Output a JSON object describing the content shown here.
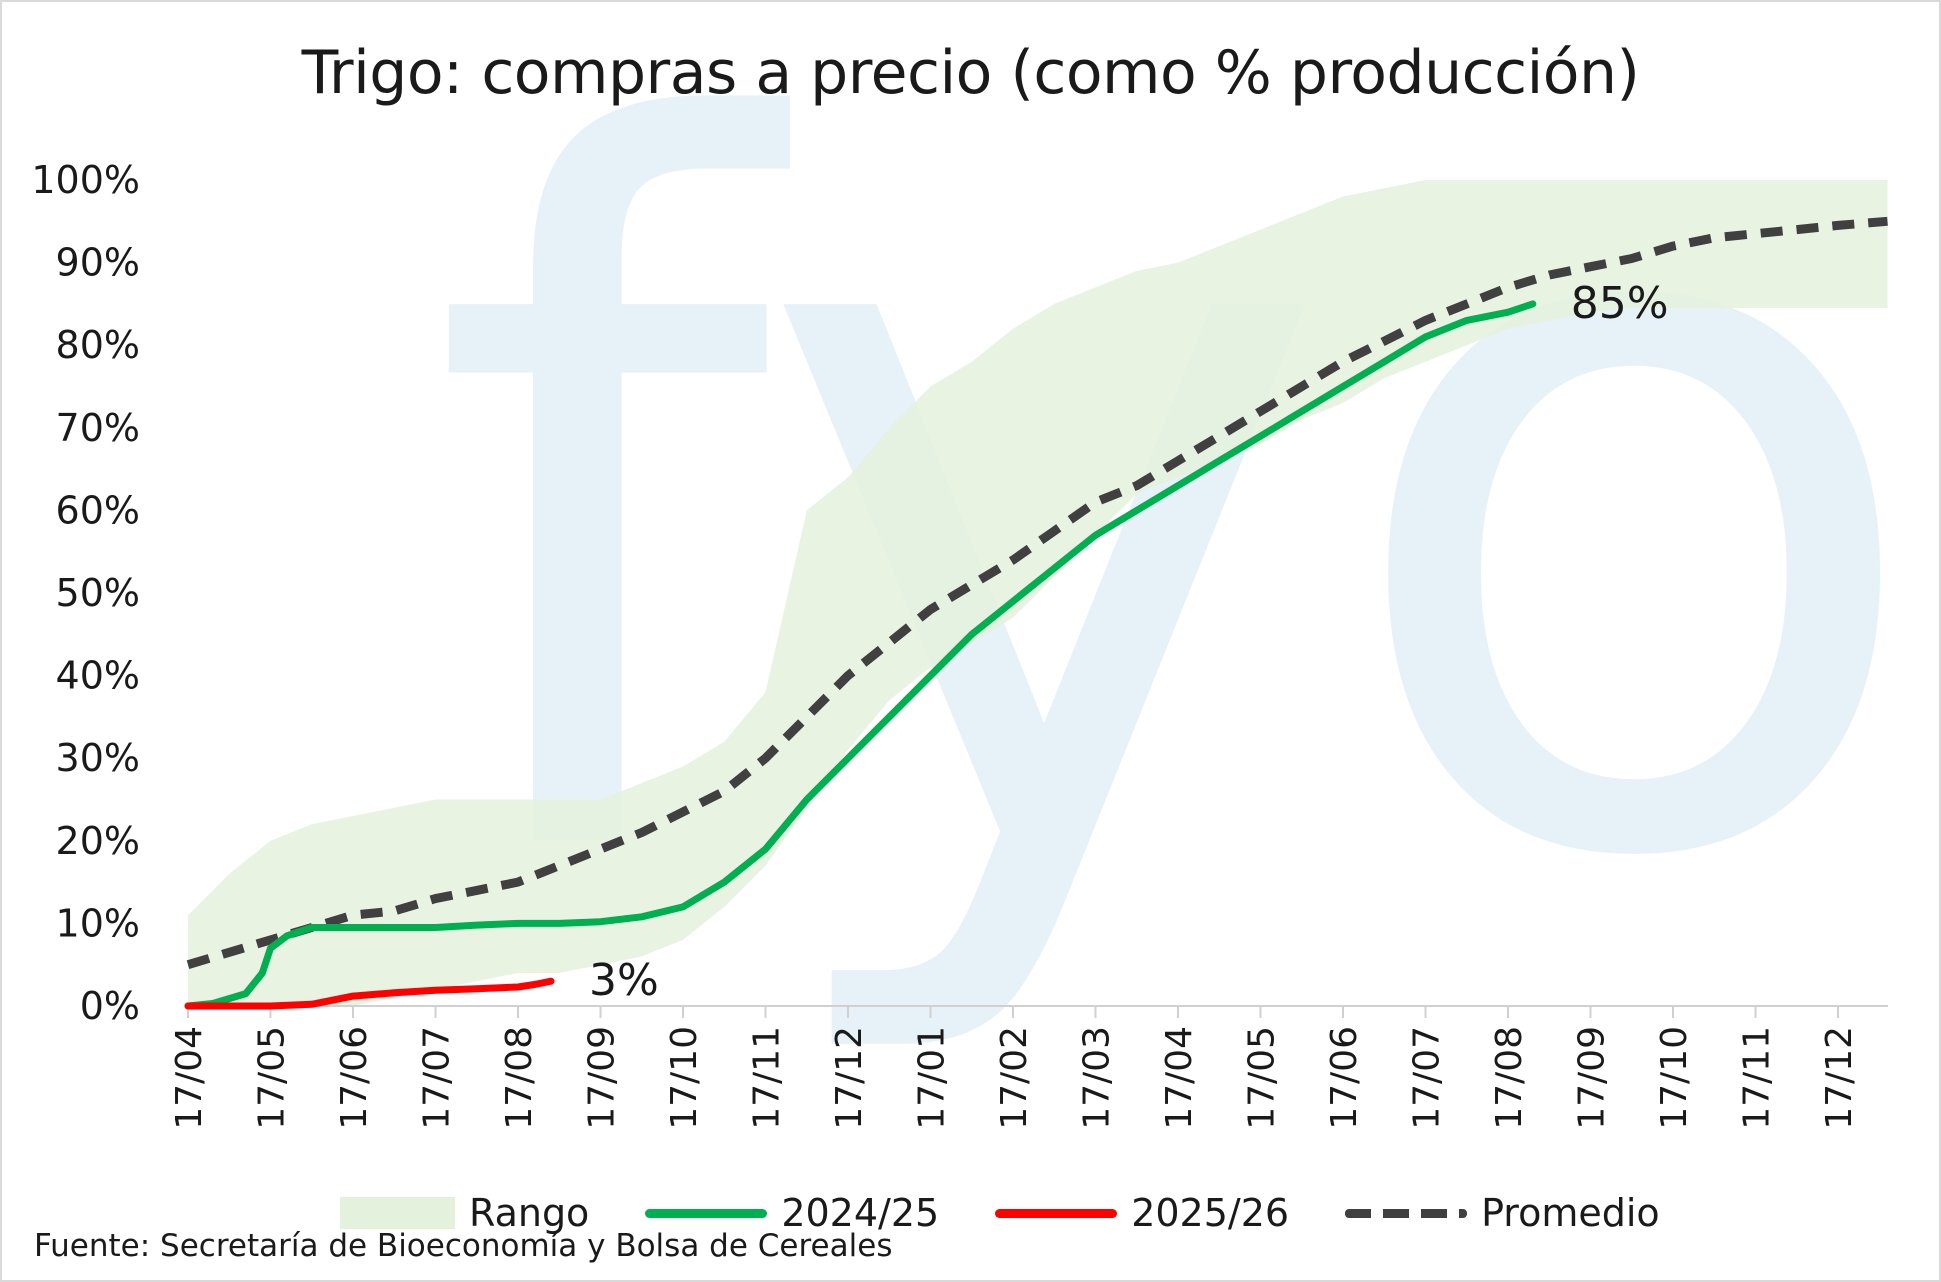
{
  "chart_data": {
    "type": "line",
    "title": "Trigo: compras a precio (como % producción)",
    "xlabel": "",
    "ylabel": "",
    "ylim": [
      0,
      100
    ],
    "y_ticks": [
      "0%",
      "10%",
      "20%",
      "30%",
      "40%",
      "50%",
      "60%",
      "70%",
      "80%",
      "90%",
      "100%"
    ],
    "x_ticks": [
      "17/04",
      "17/05",
      "17/06",
      "17/07",
      "17/08",
      "17/09",
      "17/10",
      "17/11",
      "17/12",
      "17/01",
      "17/02",
      "17/03",
      "17/04",
      "17/05",
      "17/06",
      "17/07",
      "17/08",
      "17/09",
      "17/10",
      "17/11",
      "17/12"
    ],
    "x_range": [
      0,
      20.6
    ],
    "grid": false,
    "legend_position": "bottom",
    "watermark": "fyo",
    "series": [
      {
        "name": "Rango",
        "kind": "band",
        "color": "#e4f1dd",
        "x": [
          0,
          0.5,
          1,
          1.5,
          2,
          2.5,
          3,
          3.5,
          4,
          4.5,
          5,
          5.5,
          6,
          6.5,
          7,
          7.5,
          8,
          8.5,
          9,
          9.5,
          10,
          10.5,
          11,
          11.5,
          12,
          12.5,
          13,
          13.5,
          14,
          14.5,
          15,
          15.5,
          16,
          16.5,
          17,
          17.5,
          18,
          18.5,
          19,
          19.5,
          20,
          20.6
        ],
        "upper": [
          11,
          16,
          20,
          22,
          23,
          24,
          25,
          25,
          25,
          25,
          25,
          27,
          29,
          32,
          38,
          60,
          64,
          70,
          75,
          78,
          82,
          85,
          87,
          89,
          90,
          92,
          94,
          96,
          98,
          99,
          100,
          100,
          100,
          100,
          100,
          100,
          100,
          100,
          100,
          100,
          100,
          100
        ],
        "lower": [
          0,
          0,
          0,
          0,
          0,
          1,
          2,
          3,
          4,
          4,
          5,
          6,
          8,
          12,
          17,
          24,
          31,
          37,
          41,
          44,
          47,
          52,
          57,
          62,
          64,
          66,
          68,
          71,
          73,
          76,
          78,
          80,
          82,
          83,
          84,
          84.5,
          84.5,
          84.5,
          84.5,
          84.5,
          84.5,
          84.5
        ]
      },
      {
        "name": "2024/25",
        "color": "#00b050",
        "x": [
          0,
          0.3,
          0.7,
          0.9,
          1.0,
          1.2,
          1.5,
          1.8,
          2.0,
          2.5,
          3.0,
          3.5,
          4.0,
          4.5,
          5.0,
          5.5,
          6.0,
          6.5,
          7.0,
          7.5,
          8.0,
          8.5,
          9.0,
          9.5,
          10.0,
          10.5,
          11.0,
          11.5,
          12.0,
          12.5,
          13.0,
          13.5,
          14.0,
          14.5,
          15.0,
          15.5,
          16.0,
          16.3
        ],
        "y": [
          0,
          0.3,
          1.5,
          4,
          7,
          8.5,
          9.5,
          9.5,
          9.5,
          9.5,
          9.5,
          9.8,
          10,
          10,
          10.2,
          10.8,
          12,
          15,
          19,
          25,
          30,
          35,
          40,
          45,
          49,
          53,
          57,
          60,
          63,
          66,
          69,
          72,
          75,
          78,
          81,
          83,
          84,
          85
        ]
      },
      {
        "name": "2025/26",
        "color": "#ff0000",
        "x": [
          0,
          0.5,
          1.0,
          1.5,
          2.0,
          2.5,
          3.0,
          3.5,
          4.0,
          4.2,
          4.4
        ],
        "y": [
          0,
          0,
          0,
          0.2,
          1.2,
          1.6,
          1.9,
          2.1,
          2.3,
          2.6,
          3.0
        ]
      },
      {
        "name": "Promedio",
        "color": "#404040",
        "dashed": true,
        "x": [
          0,
          0.5,
          1,
          1.5,
          2,
          2.5,
          3,
          3.5,
          4,
          4.5,
          5,
          5.5,
          6,
          6.5,
          7,
          7.5,
          8,
          8.5,
          9,
          9.5,
          10,
          10.5,
          11,
          11.5,
          12,
          12.5,
          13,
          13.5,
          14,
          14.5,
          15,
          15.5,
          16,
          16.5,
          17,
          17.5,
          18,
          18.5,
          19,
          19.5,
          20,
          20.6
        ],
        "y": [
          5,
          6.5,
          8,
          9.5,
          11,
          11.5,
          13,
          14,
          15,
          17,
          19,
          21,
          23.5,
          26,
          30,
          35,
          40,
          44,
          48,
          51,
          54,
          57.5,
          61,
          63,
          66,
          69,
          72,
          75,
          78,
          80.5,
          83,
          85,
          87,
          88.5,
          89.5,
          90.5,
          92,
          93,
          93.5,
          94,
          94.5,
          95
        ]
      }
    ],
    "annotations": [
      {
        "series": "2024/25",
        "text": "85%",
        "x": 16.3,
        "y": 85
      },
      {
        "series": "2025/26",
        "text": "3%",
        "x": 4.4,
        "y": 3
      }
    ],
    "source": "Fuente: Secretaría de Bioeconomía y Bolsa de Cereales"
  }
}
